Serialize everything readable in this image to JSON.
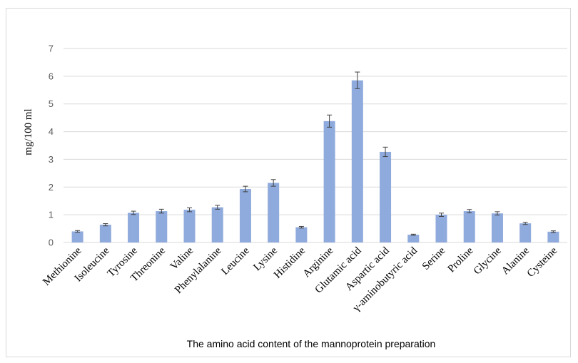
{
  "chart_data": {
    "type": "bar",
    "title": "",
    "xlabel": "The amino acid content of the mannoprotein preparation",
    "ylabel": "mg/100 ml",
    "ylim": [
      0,
      7
    ],
    "yticks": [
      0,
      1,
      2,
      3,
      4,
      5,
      6,
      7
    ],
    "grid": true,
    "categories": [
      "Methionine",
      "Isoleucine",
      "Tyrosine",
      "Threonine",
      "Valine",
      "Phenylalanine",
      "Leucine",
      "Lysine",
      "Histidine",
      "Arginine",
      "Glutamic acid",
      "Aspartic acid",
      "γ-aminobutyric acid",
      "Serine",
      "Proline",
      "Glycine",
      "Alanine",
      "Cysteine"
    ],
    "values": [
      0.4,
      0.64,
      1.07,
      1.13,
      1.18,
      1.27,
      1.93,
      2.15,
      0.55,
      4.38,
      5.85,
      3.27,
      0.28,
      1.0,
      1.13,
      1.05,
      0.69,
      0.39
    ],
    "errors": [
      0.03,
      0.04,
      0.06,
      0.07,
      0.07,
      0.07,
      0.1,
      0.12,
      0.03,
      0.22,
      0.3,
      0.17,
      0.02,
      0.06,
      0.06,
      0.06,
      0.04,
      0.03
    ],
    "colors": {
      "bar": "#8faadc",
      "grid": "#d9d9d9",
      "error": "#404040"
    }
  }
}
